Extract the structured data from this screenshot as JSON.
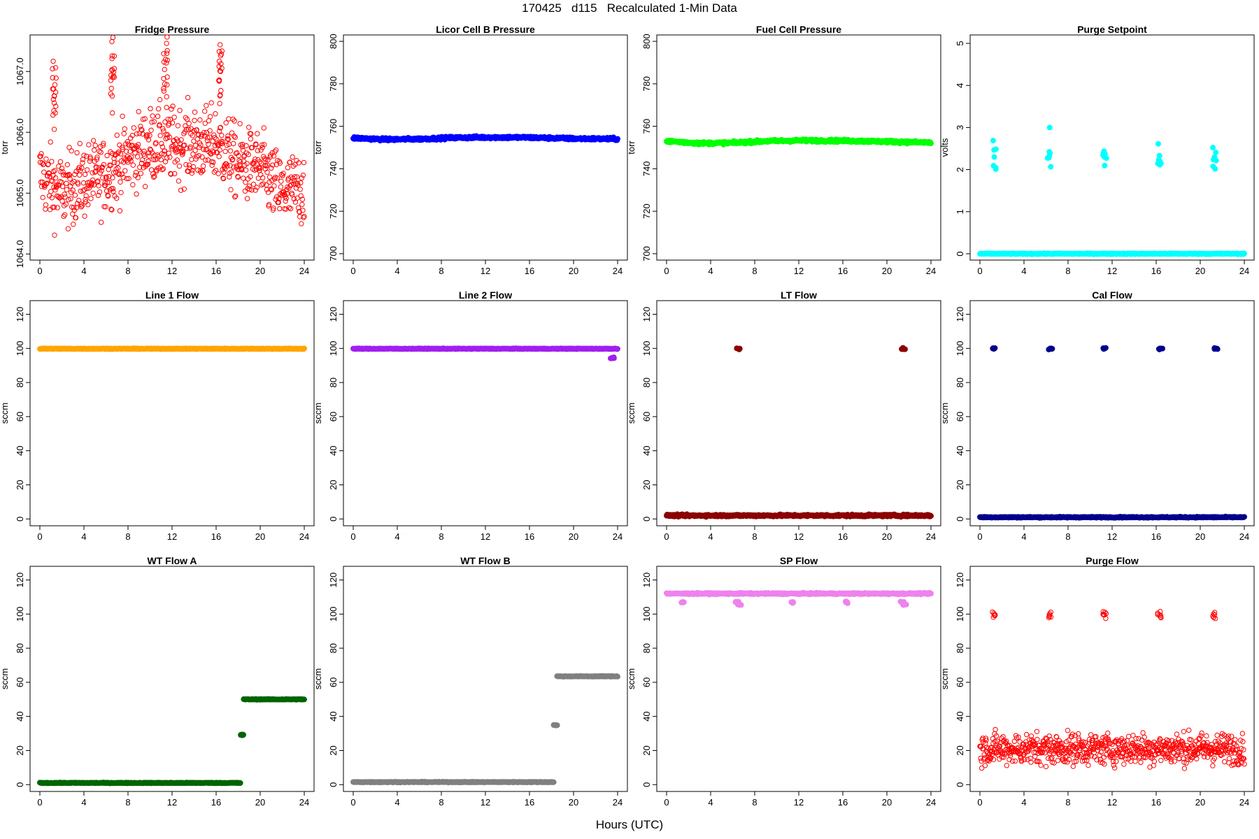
{
  "figure": {
    "title": "170425   d115   Recalculated 1-Min Data",
    "xlabel": "Hours (UTC)"
  },
  "chart_data": [
    {
      "type": "scatter",
      "title": "Fridge Pressure",
      "ylabel": "torr",
      "xlim": [
        0,
        24
      ],
      "ylim": [
        1063.9,
        1067.6
      ],
      "xticks": [
        "0",
        "4",
        "8",
        "12",
        "16",
        "20",
        "24"
      ],
      "yticks": [
        {
          "value": 1064.0,
          "label": "1064.0"
        },
        {
          "value": 1065.0,
          "label": "1065.0"
        },
        {
          "value": 1066.0,
          "label": "1066.0"
        },
        {
          "value": 1067.0,
          "label": "1067.0"
        }
      ],
      "color": "#ff0000",
      "point_style": "open",
      "series": [
        {
          "name": "Fridge Pressure",
          "baseline": [
            [
              0,
              1065.3
            ],
            [
              2,
              1065.0
            ],
            [
              4,
              1065.2
            ],
            [
              6,
              1065.3
            ],
            [
              8,
              1065.6
            ],
            [
              10,
              1065.8
            ],
            [
              12,
              1065.8
            ],
            [
              14,
              1065.8
            ],
            [
              16,
              1065.8
            ],
            [
              18,
              1065.5
            ],
            [
              20,
              1065.4
            ],
            [
              22,
              1065.0
            ],
            [
              24,
              1065.1
            ]
          ],
          "noise": 0.3,
          "spikes": [
            {
              "x": 1.3,
              "y": 1066.6
            },
            {
              "x": 6.6,
              "y": 1066.9
            },
            {
              "x": 11.4,
              "y": 1067.2
            },
            {
              "x": 16.4,
              "y": 1067.0
            }
          ]
        }
      ]
    },
    {
      "type": "scatter",
      "title": "Licor Cell B Pressure",
      "ylabel": "torr",
      "xlim": [
        0,
        24
      ],
      "ylim": [
        697,
        803
      ],
      "xticks": [
        "0",
        "4",
        "8",
        "12",
        "16",
        "20",
        "24"
      ],
      "yticks": [
        {
          "value": 700,
          "label": "700"
        },
        {
          "value": 720,
          "label": "720"
        },
        {
          "value": 740,
          "label": "740"
        },
        {
          "value": 760,
          "label": "760"
        },
        {
          "value": 780,
          "label": "780"
        },
        {
          "value": 800,
          "label": "800"
        }
      ],
      "color": "#0000ff",
      "point_style": "filled",
      "series": [
        {
          "name": "Licor Cell B Pressure",
          "baseline": [
            [
              0,
              754.5
            ],
            [
              3,
              753.8
            ],
            [
              6,
              754.0
            ],
            [
              9,
              754.6
            ],
            [
              12,
              754.8
            ],
            [
              16,
              754.7
            ],
            [
              20,
              754.2
            ],
            [
              24,
              754.0
            ]
          ],
          "noise": 0.3,
          "spikes": []
        }
      ]
    },
    {
      "type": "scatter",
      "title": "Fuel Cell Pressure",
      "ylabel": "torr",
      "xlim": [
        0,
        24
      ],
      "ylim": [
        697,
        803
      ],
      "xticks": [
        "0",
        "4",
        "8",
        "12",
        "16",
        "20",
        "24"
      ],
      "yticks": [
        {
          "value": 700,
          "label": "700"
        },
        {
          "value": 720,
          "label": "720"
        },
        {
          "value": 740,
          "label": "740"
        },
        {
          "value": 760,
          "label": "760"
        },
        {
          "value": 780,
          "label": "780"
        },
        {
          "value": 800,
          "label": "800"
        }
      ],
      "color": "#00ff00",
      "point_style": "filled",
      "series": [
        {
          "name": "Fuel Cell Pressure",
          "baseline": [
            [
              0,
              753
            ],
            [
              3,
              752
            ],
            [
              6,
              752.2
            ],
            [
              9,
              753
            ],
            [
              12,
              753.3
            ],
            [
              16,
              753.2
            ],
            [
              20,
              752.8
            ],
            [
              24,
              752.3
            ]
          ],
          "noise": 0.3,
          "spikes": []
        }
      ]
    },
    {
      "type": "scatter",
      "title": "Purge Setpoint",
      "ylabel": "volts",
      "xlim": [
        0,
        24
      ],
      "ylim": [
        -0.15,
        5.2
      ],
      "xticks": [
        "0",
        "4",
        "8",
        "12",
        "16",
        "20",
        "24"
      ],
      "yticks": [
        {
          "value": 0,
          "label": "0"
        },
        {
          "value": 1,
          "label": "1"
        },
        {
          "value": 2,
          "label": "2"
        },
        {
          "value": 3,
          "label": "3"
        },
        {
          "value": 4,
          "label": "4"
        },
        {
          "value": 5,
          "label": "5"
        }
      ],
      "color": "#00ffff",
      "point_style": "filled",
      "series": [
        {
          "name": "Purge Setpoint",
          "baseline": [
            [
              0,
              0
            ],
            [
              24,
              0
            ]
          ],
          "noise": 0.005,
          "spikes": [
            {
              "x": 1.3,
              "y": 2.3
            },
            {
              "x": 6.3,
              "y": 2.32
            },
            {
              "x": 11.3,
              "y": 2.3
            },
            {
              "x": 16.3,
              "y": 2.33
            },
            {
              "x": 21.3,
              "y": 2.3
            }
          ]
        }
      ]
    },
    {
      "type": "scatter",
      "title": "Line 1 Flow",
      "ylabel": "sccm",
      "xlim": [
        0,
        24
      ],
      "ylim": [
        -4,
        128
      ],
      "xticks": [
        "0",
        "4",
        "8",
        "12",
        "16",
        "20",
        "24"
      ],
      "yticks": [
        {
          "value": 0,
          "label": "0"
        },
        {
          "value": 20,
          "label": "20"
        },
        {
          "value": 40,
          "label": "40"
        },
        {
          "value": 60,
          "label": "60"
        },
        {
          "value": 80,
          "label": "80"
        },
        {
          "value": 100,
          "label": "100"
        },
        {
          "value": 120,
          "label": "120"
        }
      ],
      "color": "#ffa500",
      "point_style": "filled",
      "series": [
        {
          "name": "Line 1 Flow",
          "baseline": [
            [
              0,
              99.8
            ],
            [
              24,
              99.8
            ]
          ],
          "noise": 0.1,
          "spikes": []
        }
      ]
    },
    {
      "type": "scatter",
      "title": "Line 2 Flow",
      "ylabel": "sccm",
      "xlim": [
        0,
        24
      ],
      "ylim": [
        -4,
        128
      ],
      "xticks": [
        "0",
        "4",
        "8",
        "12",
        "16",
        "20",
        "24"
      ],
      "yticks": [
        {
          "value": 0,
          "label": "0"
        },
        {
          "value": 20,
          "label": "20"
        },
        {
          "value": 40,
          "label": "40"
        },
        {
          "value": 60,
          "label": "60"
        },
        {
          "value": 80,
          "label": "80"
        },
        {
          "value": 100,
          "label": "100"
        },
        {
          "value": 120,
          "label": "120"
        }
      ],
      "color": "#a020f0",
      "point_style": "filled",
      "series": [
        {
          "name": "Line 2 Flow",
          "baseline": [
            [
              0,
              99.8
            ],
            [
              24,
              99.8
            ]
          ],
          "noise": 0.1,
          "spikes": [
            {
              "x": 23.5,
              "y": 94.5
            }
          ]
        }
      ]
    },
    {
      "type": "scatter",
      "title": "LT Flow",
      "ylabel": "sccm",
      "xlim": [
        0,
        24
      ],
      "ylim": [
        -4,
        128
      ],
      "xticks": [
        "0",
        "4",
        "8",
        "12",
        "16",
        "20",
        "24"
      ],
      "yticks": [
        {
          "value": 0,
          "label": "0"
        },
        {
          "value": 20,
          "label": "20"
        },
        {
          "value": 40,
          "label": "40"
        },
        {
          "value": 60,
          "label": "60"
        },
        {
          "value": 80,
          "label": "80"
        },
        {
          "value": 100,
          "label": "100"
        },
        {
          "value": 120,
          "label": "120"
        }
      ],
      "color": "#8b0000",
      "point_style": "filled",
      "series": [
        {
          "name": "LT Flow",
          "baseline": [
            [
              0,
              2
            ],
            [
              24,
              2
            ]
          ],
          "noise": 0.3,
          "spikes": [
            {
              "x": 6.5,
              "y": 99.8
            },
            {
              "x": 21.5,
              "y": 99.8
            }
          ]
        }
      ]
    },
    {
      "type": "scatter",
      "title": "Cal Flow",
      "ylabel": "sccm",
      "xlim": [
        0,
        24
      ],
      "ylim": [
        -4,
        128
      ],
      "xticks": [
        "0",
        "4",
        "8",
        "12",
        "16",
        "20",
        "24"
      ],
      "yticks": [
        {
          "value": 0,
          "label": "0"
        },
        {
          "value": 20,
          "label": "20"
        },
        {
          "value": 40,
          "label": "40"
        },
        {
          "value": 60,
          "label": "60"
        },
        {
          "value": 80,
          "label": "80"
        },
        {
          "value": 100,
          "label": "100"
        },
        {
          "value": 120,
          "label": "120"
        }
      ],
      "color": "#00008b",
      "point_style": "filled",
      "series": [
        {
          "name": "Cal Flow",
          "baseline": [
            [
              0,
              1
            ],
            [
              24,
              1
            ]
          ],
          "noise": 0.15,
          "spikes": [
            {
              "x": 1.3,
              "y": 99.8
            },
            {
              "x": 6.4,
              "y": 99.8
            },
            {
              "x": 11.3,
              "y": 99.8
            },
            {
              "x": 16.4,
              "y": 99.8
            },
            {
              "x": 21.4,
              "y": 99.8
            }
          ]
        }
      ]
    },
    {
      "type": "scatter",
      "title": "WT Flow A",
      "ylabel": "sccm",
      "xlim": [
        0,
        24
      ],
      "ylim": [
        -4,
        128
      ],
      "xticks": [
        "0",
        "4",
        "8",
        "12",
        "16",
        "20",
        "24"
      ],
      "yticks": [
        {
          "value": 0,
          "label": "0"
        },
        {
          "value": 20,
          "label": "20"
        },
        {
          "value": 40,
          "label": "40"
        },
        {
          "value": 60,
          "label": "60"
        },
        {
          "value": 80,
          "label": "80"
        },
        {
          "value": 100,
          "label": "100"
        },
        {
          "value": 120,
          "label": "120"
        }
      ],
      "color": "#006400",
      "point_style": "filled",
      "series": [
        {
          "name": "WT Flow A",
          "segments": [
            {
              "x0": 0,
              "x1": 18.2,
              "y": 1
            },
            {
              "x0": 18.5,
              "x1": 24,
              "y": 50
            }
          ],
          "noise": 0.1,
          "spikes": [
            {
              "x": 18.35,
              "y": 29
            }
          ]
        }
      ]
    },
    {
      "type": "scatter",
      "title": "WT Flow B",
      "ylabel": "sccm",
      "xlim": [
        0,
        24
      ],
      "ylim": [
        -4,
        128
      ],
      "xticks": [
        "0",
        "4",
        "8",
        "12",
        "16",
        "20",
        "24"
      ],
      "yticks": [
        {
          "value": 0,
          "label": "0"
        },
        {
          "value": 20,
          "label": "20"
        },
        {
          "value": 40,
          "label": "40"
        },
        {
          "value": 60,
          "label": "60"
        },
        {
          "value": 80,
          "label": "80"
        },
        {
          "value": 100,
          "label": "100"
        },
        {
          "value": 120,
          "label": "120"
        }
      ],
      "color": "#808080",
      "point_style": "filled",
      "series": [
        {
          "name": "WT Flow B",
          "segments": [
            {
              "x0": 0,
              "x1": 18.2,
              "y": 1.5
            },
            {
              "x0": 18.5,
              "x1": 24,
              "y": 63.5
            }
          ],
          "noise": 0.1,
          "spikes": [
            {
              "x": 18.35,
              "y": 35
            }
          ]
        }
      ]
    },
    {
      "type": "scatter",
      "title": "SP Flow",
      "ylabel": "sccm",
      "xlim": [
        0,
        24
      ],
      "ylim": [
        -4,
        128
      ],
      "xticks": [
        "0",
        "4",
        "8",
        "12",
        "16",
        "20",
        "24"
      ],
      "yticks": [
        {
          "value": 0,
          "label": "0"
        },
        {
          "value": 20,
          "label": "20"
        },
        {
          "value": 40,
          "label": "40"
        },
        {
          "value": 60,
          "label": "60"
        },
        {
          "value": 80,
          "label": "80"
        },
        {
          "value": 100,
          "label": "100"
        },
        {
          "value": 120,
          "label": "120"
        }
      ],
      "color": "#ee82ee",
      "point_style": "filled",
      "series": [
        {
          "name": "SP Flow",
          "baseline": [
            [
              0,
              112
            ],
            [
              24,
              112
            ]
          ],
          "noise": 0.2,
          "spikes": [
            {
              "x": 1.4,
              "y": 107
            },
            {
              "x": 6.4,
              "y": 107
            },
            {
              "x": 6.6,
              "y": 105.5
            },
            {
              "x": 11.4,
              "y": 107
            },
            {
              "x": 16.4,
              "y": 107
            },
            {
              "x": 21.4,
              "y": 107
            },
            {
              "x": 21.6,
              "y": 105.5
            }
          ]
        }
      ]
    },
    {
      "type": "scatter",
      "title": "Purge Flow",
      "ylabel": "sccm",
      "xlim": [
        0,
        24
      ],
      "ylim": [
        -4,
        128
      ],
      "xticks": [
        "0",
        "4",
        "8",
        "12",
        "16",
        "20",
        "24"
      ],
      "yticks": [
        {
          "value": 0,
          "label": "0"
        },
        {
          "value": 20,
          "label": "20"
        },
        {
          "value": 40,
          "label": "40"
        },
        {
          "value": 60,
          "label": "60"
        },
        {
          "value": 80,
          "label": "80"
        },
        {
          "value": 100,
          "label": "100"
        },
        {
          "value": 120,
          "label": "120"
        }
      ],
      "color": "#ff0000",
      "point_style": "open",
      "series": [
        {
          "name": "Purge Flow",
          "baseline": [
            [
              0,
              21
            ],
            [
              24,
              21
            ]
          ],
          "noise": 4.5,
          "spikes": [
            {
              "x": 1.3,
              "y": 99.5
            },
            {
              "x": 6.3,
              "y": 99.5
            },
            {
              "x": 11.3,
              "y": 99.5
            },
            {
              "x": 16.3,
              "y": 99.5
            },
            {
              "x": 21.3,
              "y": 99.5
            }
          ]
        }
      ]
    }
  ]
}
